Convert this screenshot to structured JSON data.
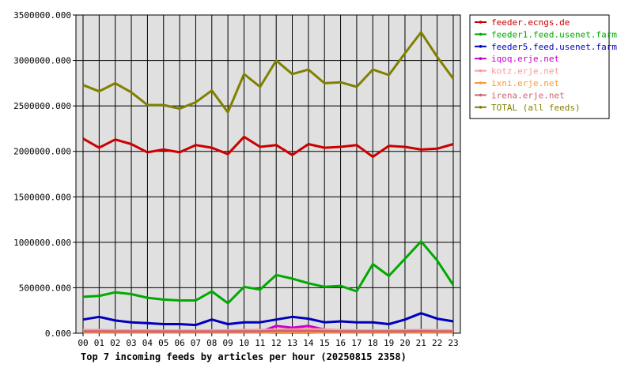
{
  "chart_data": {
    "type": "line",
    "title": "Top 7 incoming feeds by articles per hour (20250815 2358)",
    "categories": [
      "00",
      "01",
      "02",
      "03",
      "04",
      "05",
      "06",
      "07",
      "08",
      "09",
      "10",
      "11",
      "12",
      "13",
      "14",
      "15",
      "16",
      "17",
      "18",
      "19",
      "20",
      "21",
      "22",
      "23"
    ],
    "ylim": [
      0,
      3500000
    ],
    "yticks": [
      0,
      500000,
      1000000,
      1500000,
      2000000,
      2500000,
      3000000,
      3500000
    ],
    "ytick_labels": [
      "0.000",
      "500000.000",
      "1000000.000",
      "1500000.000",
      "2000000.000",
      "2500000.000",
      "3000000.000",
      "3500000.000"
    ],
    "grid": true,
    "legend_position": "right",
    "series": [
      {
        "name": "feeder.ecngs.de",
        "color": "#cc0000",
        "values": [
          2140000,
          2040000,
          2130000,
          2080000,
          1990000,
          2020000,
          1990000,
          2070000,
          2040000,
          1970000,
          2160000,
          2050000,
          2070000,
          1960000,
          2080000,
          2040000,
          2050000,
          2070000,
          1940000,
          2060000,
          2050000,
          2020000,
          2030000,
          2080000
        ]
      },
      {
        "name": "feeder1.feed.usenet.farm",
        "color": "#00aa00",
        "values": [
          400000,
          410000,
          450000,
          430000,
          390000,
          370000,
          360000,
          360000,
          460000,
          330000,
          510000,
          480000,
          640000,
          600000,
          550000,
          510000,
          520000,
          460000,
          760000,
          630000,
          820000,
          1010000,
          800000,
          530000
        ]
      },
      {
        "name": "feeder5.feed.usenet.farm",
        "color": "#0000bb",
        "values": [
          150000,
          180000,
          140000,
          120000,
          110000,
          100000,
          100000,
          90000,
          150000,
          100000,
          120000,
          120000,
          150000,
          180000,
          160000,
          120000,
          130000,
          120000,
          120000,
          100000,
          150000,
          220000,
          160000,
          130000
        ]
      },
      {
        "name": "iqoq.erje.net",
        "color": "#cc00cc",
        "values": [
          15000,
          15000,
          12000,
          12000,
          12000,
          12000,
          12000,
          12000,
          12000,
          12000,
          15000,
          15000,
          80000,
          60000,
          80000,
          40000,
          30000,
          20000,
          20000,
          20000,
          20000,
          25000,
          20000,
          20000
        ]
      },
      {
        "name": "kotz.erje.net",
        "color": "#ff9999",
        "values": [
          35000,
          35000,
          30000,
          30000,
          30000,
          28000,
          28000,
          28000,
          30000,
          30000,
          35000,
          35000,
          40000,
          40000,
          45000,
          40000,
          35000,
          30000,
          30000,
          30000,
          32000,
          35000,
          32000,
          30000
        ]
      },
      {
        "name": "ixni.erje.net",
        "color": "#ff9933",
        "values": [
          8000,
          8000,
          8000,
          8000,
          8000,
          8000,
          8000,
          8000,
          8000,
          8000,
          8000,
          8000,
          10000,
          10000,
          10000,
          8000,
          8000,
          8000,
          8000,
          8000,
          8000,
          8000,
          8000,
          8000
        ]
      },
      {
        "name": "irena.erje.net",
        "color": "#cc6677",
        "values": [
          20000,
          20000,
          18000,
          18000,
          18000,
          18000,
          18000,
          18000,
          18000,
          18000,
          20000,
          20000,
          25000,
          25000,
          25000,
          22000,
          20000,
          20000,
          20000,
          20000,
          20000,
          22000,
          20000,
          20000
        ]
      },
      {
        "name": "TOTAL (all feeds)",
        "color": "#808000",
        "values": [
          2730000,
          2660000,
          2750000,
          2650000,
          2510000,
          2510000,
          2470000,
          2540000,
          2670000,
          2430000,
          2850000,
          2710000,
          3000000,
          2850000,
          2900000,
          2750000,
          2760000,
          2710000,
          2900000,
          2840000,
          3080000,
          3310000,
          3040000,
          2800000
        ]
      }
    ]
  }
}
